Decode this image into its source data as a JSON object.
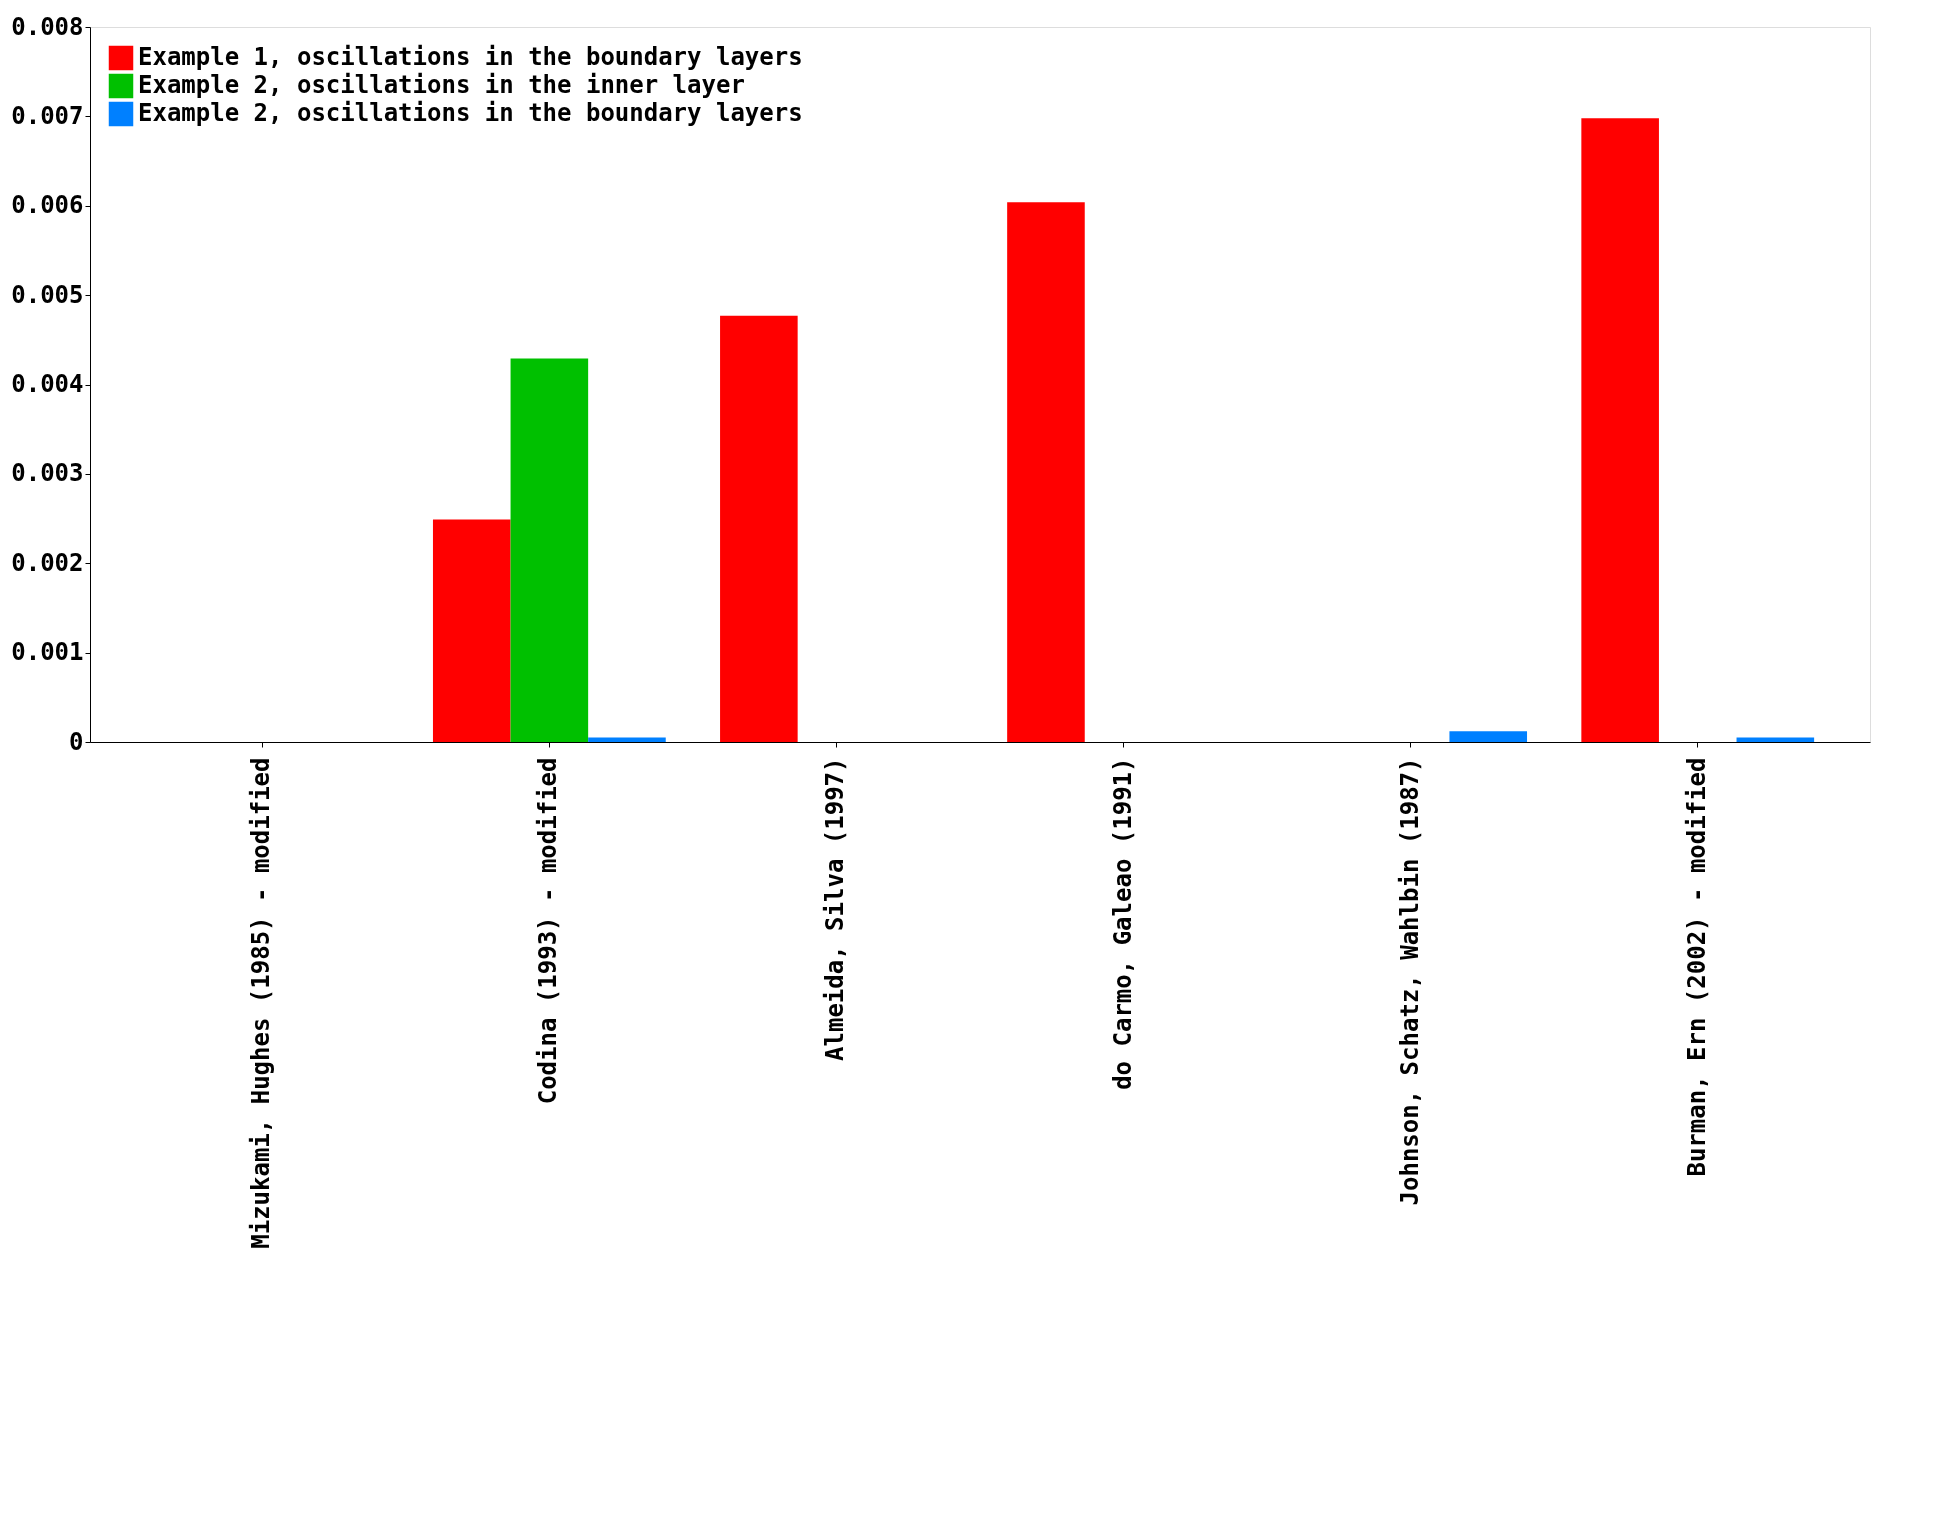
{
  "chart_data": {
    "type": "bar",
    "categories": [
      "Mizukami, Hughes (1985) - modified",
      "Codina (1993) - modified",
      "Almeida, Silva (1997)",
      "do Carmo, Galeao (1991)",
      "Johnson, Schatz, Wahlbin (1987)",
      "Burman, Ern (2002) - modified"
    ],
    "series": [
      {
        "name": "Example 1, oscillations in the boundary layers",
        "color": "#ff0000",
        "values": [
          0,
          0.00249,
          0.00477,
          0.00604,
          0,
          0.00698
        ]
      },
      {
        "name": "Example 2, oscillations in the inner layer",
        "color": "#00c000",
        "values": [
          0,
          0.00429,
          0,
          0,
          0,
          0
        ]
      },
      {
        "name": "Example 2, oscillations in the boundary layers",
        "color": "#0080ff",
        "values": [
          0,
          5e-05,
          0,
          0,
          0.00012,
          5e-05
        ]
      }
    ],
    "ylim": [
      0,
      0.008
    ],
    "yticks": [
      0,
      0.001,
      0.002,
      0.003,
      0.004,
      0.005,
      0.006,
      0.007,
      0.008
    ],
    "grid": false,
    "legend": "top left"
  }
}
